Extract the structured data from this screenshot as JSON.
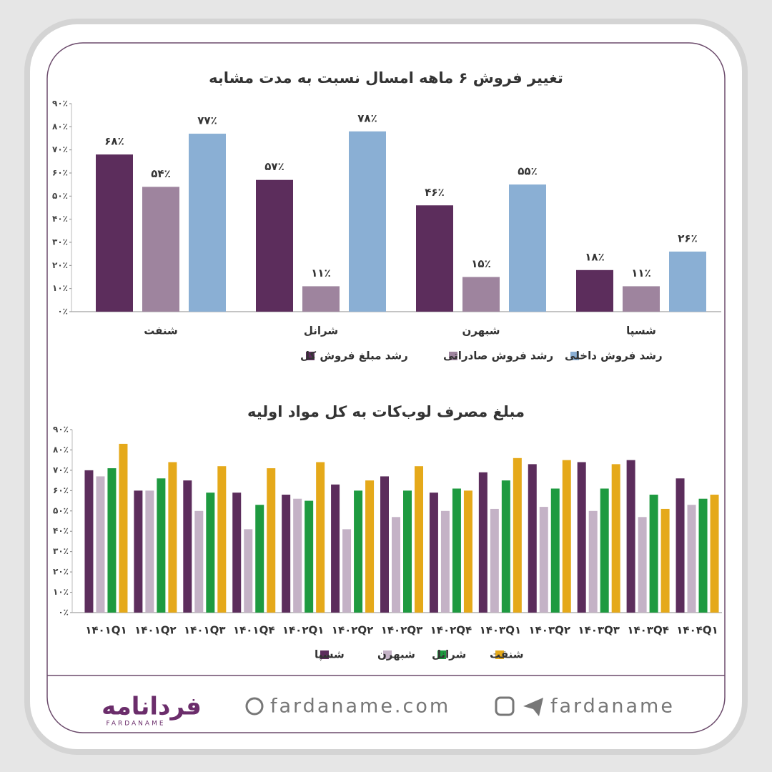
{
  "chart_data": [
    {
      "type": "bar",
      "title": "تغییر فروش ۶ ماهه امسال نسبت به مدت مشابه",
      "categories": [
        "شنفت",
        "شرانل",
        "شبهرن",
        "شسپا"
      ],
      "series": [
        {
          "name": "رشد مبلغ فروش کل",
          "color": "#5c2d5c",
          "values": [
            68,
            57,
            46,
            18
          ],
          "value_labels": [
            "۶۸٪",
            "۵۷٪",
            "۴۶٪",
            "۱۸٪"
          ]
        },
        {
          "name": "رشد فروش صادراتی",
          "color": "#9e849e",
          "values": [
            54,
            11,
            15,
            11
          ],
          "value_labels": [
            "۵۴٪",
            "۱۱٪",
            "۱۵٪",
            "۱۱٪"
          ]
        },
        {
          "name": "رشد فروش داخلی",
          "color": "#8aafd4",
          "values": [
            77,
            78,
            55,
            26
          ],
          "value_labels": [
            "۷۷٪",
            "۷۸٪",
            "۵۵٪",
            "۲۶٪"
          ]
        }
      ],
      "ylim": [
        0,
        90
      ],
      "yticks": [
        {
          "value": 0,
          "label": "۰٪"
        },
        {
          "value": 10,
          "label": "۱۰٪"
        },
        {
          "value": 20,
          "label": "۲۰٪"
        },
        {
          "value": 30,
          "label": "۳۰٪"
        },
        {
          "value": 40,
          "label": "۴۰٪"
        },
        {
          "value": 50,
          "label": "۵۰٪"
        },
        {
          "value": 60,
          "label": "۶۰٪"
        },
        {
          "value": 70,
          "label": "۷۰٪"
        },
        {
          "value": 80,
          "label": "۸۰٪"
        },
        {
          "value": 90,
          "label": "۹۰٪"
        }
      ],
      "grid": false,
      "legend": "bottom"
    },
    {
      "type": "bar",
      "title": "مبلغ مصرف لوب‌کات به کل مواد اولیه",
      "categories": [
        "۱۴۰۱Q۱",
        "۱۴۰۱Q۲",
        "۱۴۰۱Q۳",
        "۱۴۰۱Q۴",
        "۱۴۰۲Q۱",
        "۱۴۰۲Q۲",
        "۱۴۰۲Q۳",
        "۱۴۰۲Q۴",
        "۱۴۰۳Q۱",
        "۱۴۰۳Q۲",
        "۱۴۰۳Q۳",
        "۱۴۰۳Q۴",
        "۱۴۰۴Q۱"
      ],
      "series": [
        {
          "name": "شسپا",
          "color": "#5c2d5c",
          "values": [
            70,
            60,
            65,
            59,
            58,
            63,
            67,
            59,
            69,
            73,
            74,
            75,
            66
          ]
        },
        {
          "name": "شبهرن",
          "color": "#c4b2c6",
          "values": [
            67,
            60,
            50,
            41,
            56,
            41,
            47,
            50,
            51,
            52,
            50,
            47,
            53
          ]
        },
        {
          "name": "شرانل",
          "color": "#1e9a40",
          "values": [
            71,
            66,
            59,
            53,
            55,
            60,
            60,
            61,
            65,
            61,
            61,
            58,
            56
          ]
        },
        {
          "name": "شنفت",
          "color": "#e5a91a",
          "values": [
            83,
            74,
            72,
            71,
            74,
            65,
            72,
            60,
            76,
            75,
            73,
            51,
            58
          ]
        }
      ],
      "ylim": [
        0,
        90
      ],
      "yticks": [
        {
          "value": 0,
          "label": "۰٪"
        },
        {
          "value": 10,
          "label": "۱۰٪"
        },
        {
          "value": 20,
          "label": "۲۰٪"
        },
        {
          "value": 30,
          "label": "۳۰٪"
        },
        {
          "value": 40,
          "label": "۴۰٪"
        },
        {
          "value": 50,
          "label": "۵۰٪"
        },
        {
          "value": 60,
          "label": "۶۰٪"
        },
        {
          "value": 70,
          "label": "۷۰٪"
        },
        {
          "value": 80,
          "label": "۸۰٪"
        },
        {
          "value": 90,
          "label": "۹۰٪"
        }
      ],
      "grid": false,
      "legend": "bottom"
    }
  ],
  "footer": {
    "logo": "فردانامه",
    "logo_sub": "FARDANAME",
    "website": "fardaname.com",
    "social": "fardaname"
  }
}
